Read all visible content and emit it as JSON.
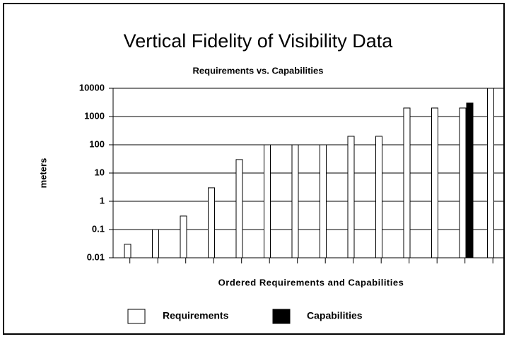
{
  "chart_data": {
    "type": "bar",
    "title": "Vertical Fidelity of Visibility Data",
    "subtitle": "Requirements vs. Capabilities",
    "x_label": "Ordered Requirements and Capabilities",
    "y_label": "meters",
    "categories": [
      null,
      null,
      null,
      null,
      null,
      null,
      null,
      null,
      null,
      null,
      null,
      null,
      null,
      null
    ],
    "series": [
      {
        "name": "Requirements",
        "color": "#ffffff",
        "values": [
          0.03,
          0.1,
          0.3,
          3,
          30,
          100,
          100,
          100,
          200,
          200,
          2000,
          2000,
          2000,
          10000
        ]
      },
      {
        "name": "Capabilities",
        "color": "#000000",
        "values": [
          null,
          null,
          null,
          null,
          null,
          null,
          null,
          null,
          null,
          null,
          null,
          null,
          3000,
          null
        ]
      }
    ],
    "ylim": [
      0.01,
      10000
    ],
    "yticks": [
      0.01,
      0.1,
      1,
      10,
      100,
      1000,
      10000
    ],
    "log_scale": true,
    "grid": true,
    "legend": "bottom"
  }
}
